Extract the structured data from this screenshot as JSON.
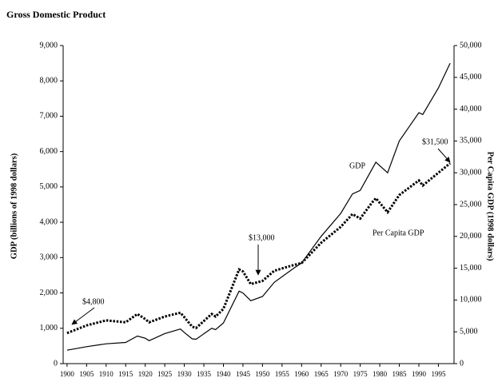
{
  "chart_data": {
    "type": "line",
    "title": "Gross Domestic Product",
    "y_label": "GDP (billions of 1998 dollars)",
    "y2_label": "Per Capita GDP (1998 dollars)",
    "x": [
      1900,
      1905,
      1910,
      1915,
      1918,
      1920,
      1921,
      1925,
      1929,
      1930,
      1932,
      1933,
      1937,
      1938,
      1940,
      1944,
      1945,
      1947,
      1950,
      1953,
      1958,
      1960,
      1965,
      1970,
      1973,
      1975,
      1978,
      1979,
      1982,
      1985,
      1990,
      1991,
      1995,
      1998
    ],
    "series": [
      {
        "name": "GDP",
        "color": "#000000",
        "values": [
          380,
          480,
          560,
          600,
          780,
          720,
          650,
          850,
          980,
          880,
          700,
          690,
          1000,
          960,
          1150,
          2050,
          2000,
          1780,
          1900,
          2300,
          2700,
          2850,
          3600,
          4250,
          4800,
          4900,
          5500,
          5700,
          5400,
          6300,
          7100,
          7050,
          7800,
          8500
        ]
      },
      {
        "name": "Per Capita GDP",
        "color": "#000000",
        "axis": "y2",
        "values": [
          4800,
          6000,
          6800,
          6500,
          7800,
          7000,
          6500,
          7400,
          8000,
          7300,
          5800,
          5600,
          7800,
          7400,
          8600,
          14800,
          14500,
          12500,
          13000,
          14600,
          15500,
          15800,
          19000,
          21500,
          23500,
          22800,
          25300,
          26000,
          23800,
          26500,
          28800,
          28000,
          30000,
          31500
        ]
      }
    ],
    "annotations": [
      "$4,800",
      "$13,000",
      "$31,500"
    ],
    "xlim": [
      1899,
      1999
    ],
    "xticks": [
      1900,
      1905,
      1910,
      1915,
      1920,
      1925,
      1930,
      1935,
      1940,
      1945,
      1950,
      1955,
      1960,
      1965,
      1970,
      1975,
      1980,
      1985,
      1990,
      1995
    ],
    "ylim": [
      0,
      9000
    ],
    "yticks": [
      0,
      {
        "value": 1000,
        "label": "1,000"
      },
      {
        "value": 2000,
        "label": "2,000"
      },
      {
        "value": 3000,
        "label": "3,000"
      },
      {
        "value": 4000,
        "label": "4,000"
      },
      {
        "value": 5000,
        "label": "5,000"
      },
      {
        "value": 6000,
        "label": "6,000"
      },
      {
        "value": 7000,
        "label": "7,000"
      },
      {
        "value": 8000,
        "label": "8,000"
      },
      {
        "value": 9000,
        "label": "9,000"
      }
    ],
    "y2lim": [
      0,
      50000
    ],
    "y2ticks": [
      0,
      {
        "value": 5000,
        "label": "5,000"
      },
      {
        "value": 10000,
        "label": "10,000"
      },
      {
        "value": 15000,
        "label": "15,000"
      },
      {
        "value": 20000,
        "label": "20,000"
      },
      {
        "value": 25000,
        "label": "25,000"
      },
      {
        "value": 30000,
        "label": "30,000"
      },
      {
        "value": 35000,
        "label": "35,000"
      },
      {
        "value": 40000,
        "label": "40,000"
      },
      {
        "value": 45000,
        "label": "45,000"
      },
      {
        "value": 50000,
        "label": "50,000"
      }
    ],
    "grid": false
  }
}
